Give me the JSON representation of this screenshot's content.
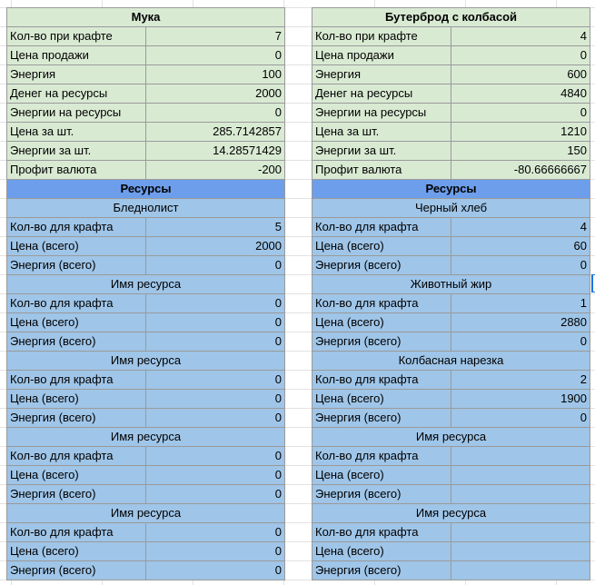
{
  "labels": {
    "craft_qty": "Кол-во при крафте",
    "sell_price": "Цена продажи",
    "energy": "Энергия",
    "money_res": "Денег на ресурсы",
    "energy_res": "Энергии на ресурсы",
    "price_each": "Цена за шт.",
    "energy_each": "Энергии за шт.",
    "profit": "Профит валюта",
    "resources": "Ресурсы",
    "need_qty": "Кол-во для крафта",
    "price_total": "Цена (всего)",
    "energy_total": "Энергия (всего)"
  },
  "left": {
    "title": "Мука",
    "craft_qty": "7",
    "sell_price": "0",
    "energy": "100",
    "money_res": "2000",
    "energy_res": "0",
    "price_each": "285.7142857",
    "energy_each": "14.28571429",
    "profit": "-200",
    "resources": [
      {
        "name": "Бледнолист",
        "qty": "5",
        "price": "2000",
        "energy": "0"
      },
      {
        "name": "Имя ресурса",
        "qty": "0",
        "price": "0",
        "energy": "0"
      },
      {
        "name": "Имя ресурса",
        "qty": "0",
        "price": "0",
        "energy": "0"
      },
      {
        "name": "Имя ресурса",
        "qty": "0",
        "price": "0",
        "energy": "0"
      },
      {
        "name": "Имя ресурса",
        "qty": "0",
        "price": "0",
        "energy": "0"
      }
    ]
  },
  "right": {
    "title": "Бутерброд с колбасой",
    "craft_qty": "4",
    "sell_price": "0",
    "energy": "600",
    "money_res": "4840",
    "energy_res": "0",
    "price_each": "1210",
    "energy_each": "150",
    "profit": "-80.66666667",
    "resources": [
      {
        "name": "Черный хлеб",
        "qty": "4",
        "price": "60",
        "energy": "0"
      },
      {
        "name": "Животный жир",
        "qty": "1",
        "price": "2880",
        "energy": "0"
      },
      {
        "name": "Колбасная нарезка",
        "qty": "2",
        "price": "1900",
        "energy": "0"
      },
      {
        "name": "Имя ресурса",
        "qty": "",
        "price": "",
        "energy": ""
      },
      {
        "name": "Имя ресурса",
        "qty": "",
        "price": "",
        "energy": ""
      }
    ]
  }
}
